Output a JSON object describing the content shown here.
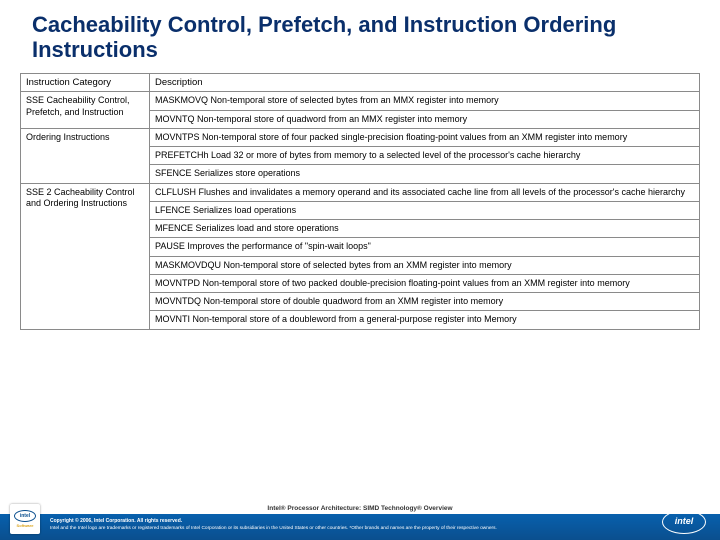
{
  "title": "Cacheability Control, Prefetch, and Instruction Ordering Instructions",
  "headers": {
    "cat": "Instruction Category",
    "desc": "Description"
  },
  "group1": {
    "cat_a": "SSE Cacheability Control, Prefetch, and Instruction",
    "cat_b": "Ordering Instructions",
    "r1": "MASKMOVQ Non-temporal store of selected bytes from an MMX register into memory",
    "r2": "MOVNTQ Non-temporal store of quadword from an MMX register into memory",
    "r3": "MOVNTPS Non-temporal store of four packed single-precision floating-point values from an XMM register into memory",
    "r4": "PREFETCHh Load 32 or more of bytes from memory to a selected level of the processor's cache hierarchy",
    "r5": "SFENCE Serializes store operations"
  },
  "group2": {
    "cat": "SSE 2 Cacheability Control and Ordering Instructions",
    "r1": "CLFLUSH Flushes and invalidates a memory operand and its associated cache line from all levels of the processor's cache hierarchy",
    "r2": "LFENCE Serializes load operations",
    "r3": "MFENCE Serializes load and store operations",
    "r4": "PAUSE Improves the performance of \"spin-wait loops\"",
    "r5": "MASKMOVDQU Non-temporal store of selected bytes from an XMM register into memory",
    "r6": "MOVNTPD Non-temporal store of two packed double-precision floating-point values from an XMM register into memory",
    "r7": "MOVNTDQ Non-temporal store of double quadword from an XMM register into memory",
    "r8": "MOVNTI Non-temporal store of a doubleword from a general-purpose register into Memory"
  },
  "footer": {
    "mid": "Intel® Processor Architecture: SIMD Technology® Overview",
    "copy": "Copyright © 2006, Intel Corporation. All rights reserved.",
    "legal": "Intel and the Intel logo are trademarks or registered trademarks of Intel Corporation or its subsidiaries in the United States or other countries. *Other brands and names are the property of their respective owners."
  },
  "logos": {
    "intel": "intel",
    "sw": "Software",
    "right": "intel"
  },
  "colors": {
    "title": "#0a2f6b",
    "border": "#8a8a8a",
    "band_top": "#0860ad",
    "band_bottom": "#0a4f8e",
    "bg": "#ffffff"
  }
}
